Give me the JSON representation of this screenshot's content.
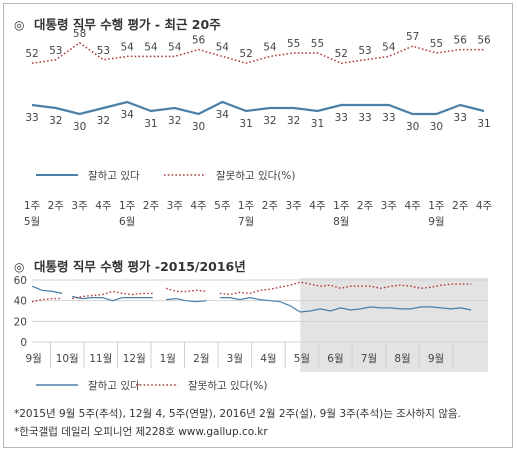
{
  "chart_data": [
    {
      "type": "line",
      "title": "대통령 직무 수행 평가 - 최근 20주",
      "title_mark": "◎",
      "x_top": [
        "1주",
        "2주",
        "3주",
        "4주",
        "1주",
        "2주",
        "3주",
        "4주",
        "5주",
        "1주",
        "2주",
        "3주",
        "4주",
        "1주",
        "2주",
        "3주",
        "4주",
        "1주",
        "2주",
        "4주"
      ],
      "x_bottom": [
        "5월",
        "",
        "",
        "",
        "6월",
        "",
        "",
        "",
        "",
        "7월",
        "",
        "",
        "",
        "8월",
        "",
        "",
        "",
        "9월",
        "",
        ""
      ],
      "series": [
        {
          "name": "잘하고 있다",
          "color": "#4a7fa8",
          "style": "solid",
          "values": [
            33,
            32,
            30,
            32,
            34,
            31,
            32,
            30,
            34,
            31,
            32,
            32,
            31,
            33,
            33,
            33,
            30,
            30,
            33,
            31
          ]
        },
        {
          "name": "잘못하고 있다(%)",
          "color": "#b03a3a",
          "style": "dotted",
          "values": [
            52,
            53,
            58,
            53,
            54,
            54,
            54,
            56,
            54,
            52,
            54,
            55,
            55,
            52,
            53,
            54,
            57,
            55,
            56,
            56
          ]
        }
      ],
      "grid": false,
      "legend": "bottom-left"
    },
    {
      "type": "line",
      "title": "대통령 직무 수행 평가 -2015/2016년",
      "title_mark": "◎",
      "yticks": [
        "0",
        "20",
        "40",
        "60"
      ],
      "ylim": [
        0,
        60
      ],
      "months": [
        "9월",
        "10월",
        "11월",
        "12월",
        "1월",
        "2월",
        "3월",
        "4월",
        "5월",
        "6월",
        "7월",
        "8월",
        "9월"
      ],
      "highlight_from": "5월",
      "series": [
        {
          "name": "잘하고 있다",
          "color": "#4a7fa8",
          "style": "solid",
          "segments": [
            [
              [
                0,
                54
              ],
              [
                0.3,
                50
              ],
              [
                0.6,
                49
              ],
              [
                0.9,
                47
              ]
            ],
            [
              [
                1.2,
                44
              ],
              [
                1.5,
                42
              ],
              [
                1.8,
                43
              ],
              [
                2.1,
                43
              ],
              [
                2.4,
                40
              ],
              [
                2.7,
                43
              ],
              [
                3.0,
                43
              ],
              [
                3.3,
                43
              ],
              [
                3.6,
                43
              ]
            ],
            [
              [
                4.0,
                41
              ],
              [
                4.3,
                42
              ],
              [
                4.6,
                40
              ],
              [
                4.9,
                39
              ],
              [
                5.2,
                40
              ]
            ],
            [
              [
                5.6,
                43
              ],
              [
                5.9,
                43
              ],
              [
                6.2,
                41
              ],
              [
                6.5,
                43
              ],
              [
                6.8,
                41
              ],
              [
                7.1,
                40
              ],
              [
                7.4,
                39
              ],
              [
                7.7,
                35
              ],
              [
                8.0,
                29
              ],
              [
                8.3,
                30
              ],
              [
                8.6,
                32
              ],
              [
                8.9,
                30
              ],
              [
                9.2,
                33
              ],
              [
                9.5,
                31
              ],
              [
                9.8,
                32
              ],
              [
                10.1,
                34
              ],
              [
                10.4,
                33
              ],
              [
                10.7,
                33
              ],
              [
                11.0,
                32
              ],
              [
                11.3,
                32
              ],
              [
                11.6,
                34
              ],
              [
                11.9,
                34
              ],
              [
                12.2,
                33
              ],
              [
                12.5,
                32
              ],
              [
                12.8,
                33
              ],
              [
                13.1,
                31
              ]
            ]
          ]
        },
        {
          "name": "잘못하고 있다(%)",
          "color": "#b03a3a",
          "style": "dotted",
          "segments": [
            [
              [
                0,
                39
              ],
              [
                0.3,
                41
              ],
              [
                0.6,
                42
              ],
              [
                0.9,
                42
              ]
            ],
            [
              [
                1.2,
                42
              ],
              [
                1.5,
                44
              ],
              [
                1.8,
                45
              ],
              [
                2.1,
                46
              ],
              [
                2.4,
                49
              ],
              [
                2.7,
                47
              ],
              [
                3.0,
                46
              ],
              [
                3.3,
                47
              ],
              [
                3.6,
                47
              ]
            ],
            [
              [
                4.0,
                52
              ],
              [
                4.3,
                49
              ],
              [
                4.6,
                49
              ],
              [
                4.9,
                50
              ],
              [
                5.2,
                49
              ]
            ],
            [
              [
                5.6,
                47
              ],
              [
                5.9,
                46
              ],
              [
                6.2,
                48
              ],
              [
                6.5,
                47
              ],
              [
                6.8,
                50
              ],
              [
                7.1,
                51
              ],
              [
                7.4,
                53
              ],
              [
                7.7,
                55
              ],
              [
                8.0,
                58
              ],
              [
                8.3,
                56
              ],
              [
                8.6,
                54
              ],
              [
                8.9,
                55
              ],
              [
                9.2,
                52
              ],
              [
                9.5,
                54
              ],
              [
                9.8,
                54
              ],
              [
                10.1,
                54
              ],
              [
                10.4,
                52
              ],
              [
                10.7,
                54
              ],
              [
                11.0,
                55
              ],
              [
                11.3,
                54
              ],
              [
                11.6,
                52
              ],
              [
                11.9,
                53
              ],
              [
                12.2,
                55
              ],
              [
                12.5,
                56
              ],
              [
                12.8,
                56
              ],
              [
                13.1,
                56
              ]
            ]
          ]
        }
      ],
      "grid": true,
      "legend": "bottom-left"
    }
  ],
  "footnotes": {
    "line1": "*2015년 9월 5주(추석), 12월 4, 5주(연말), 2016년 2월 2주(설), 9월 3주(추석)는 조사하지 않음.",
    "line2": "*한국갤럽 데일리 오피니언 제228호 www.gallup.co.kr"
  }
}
